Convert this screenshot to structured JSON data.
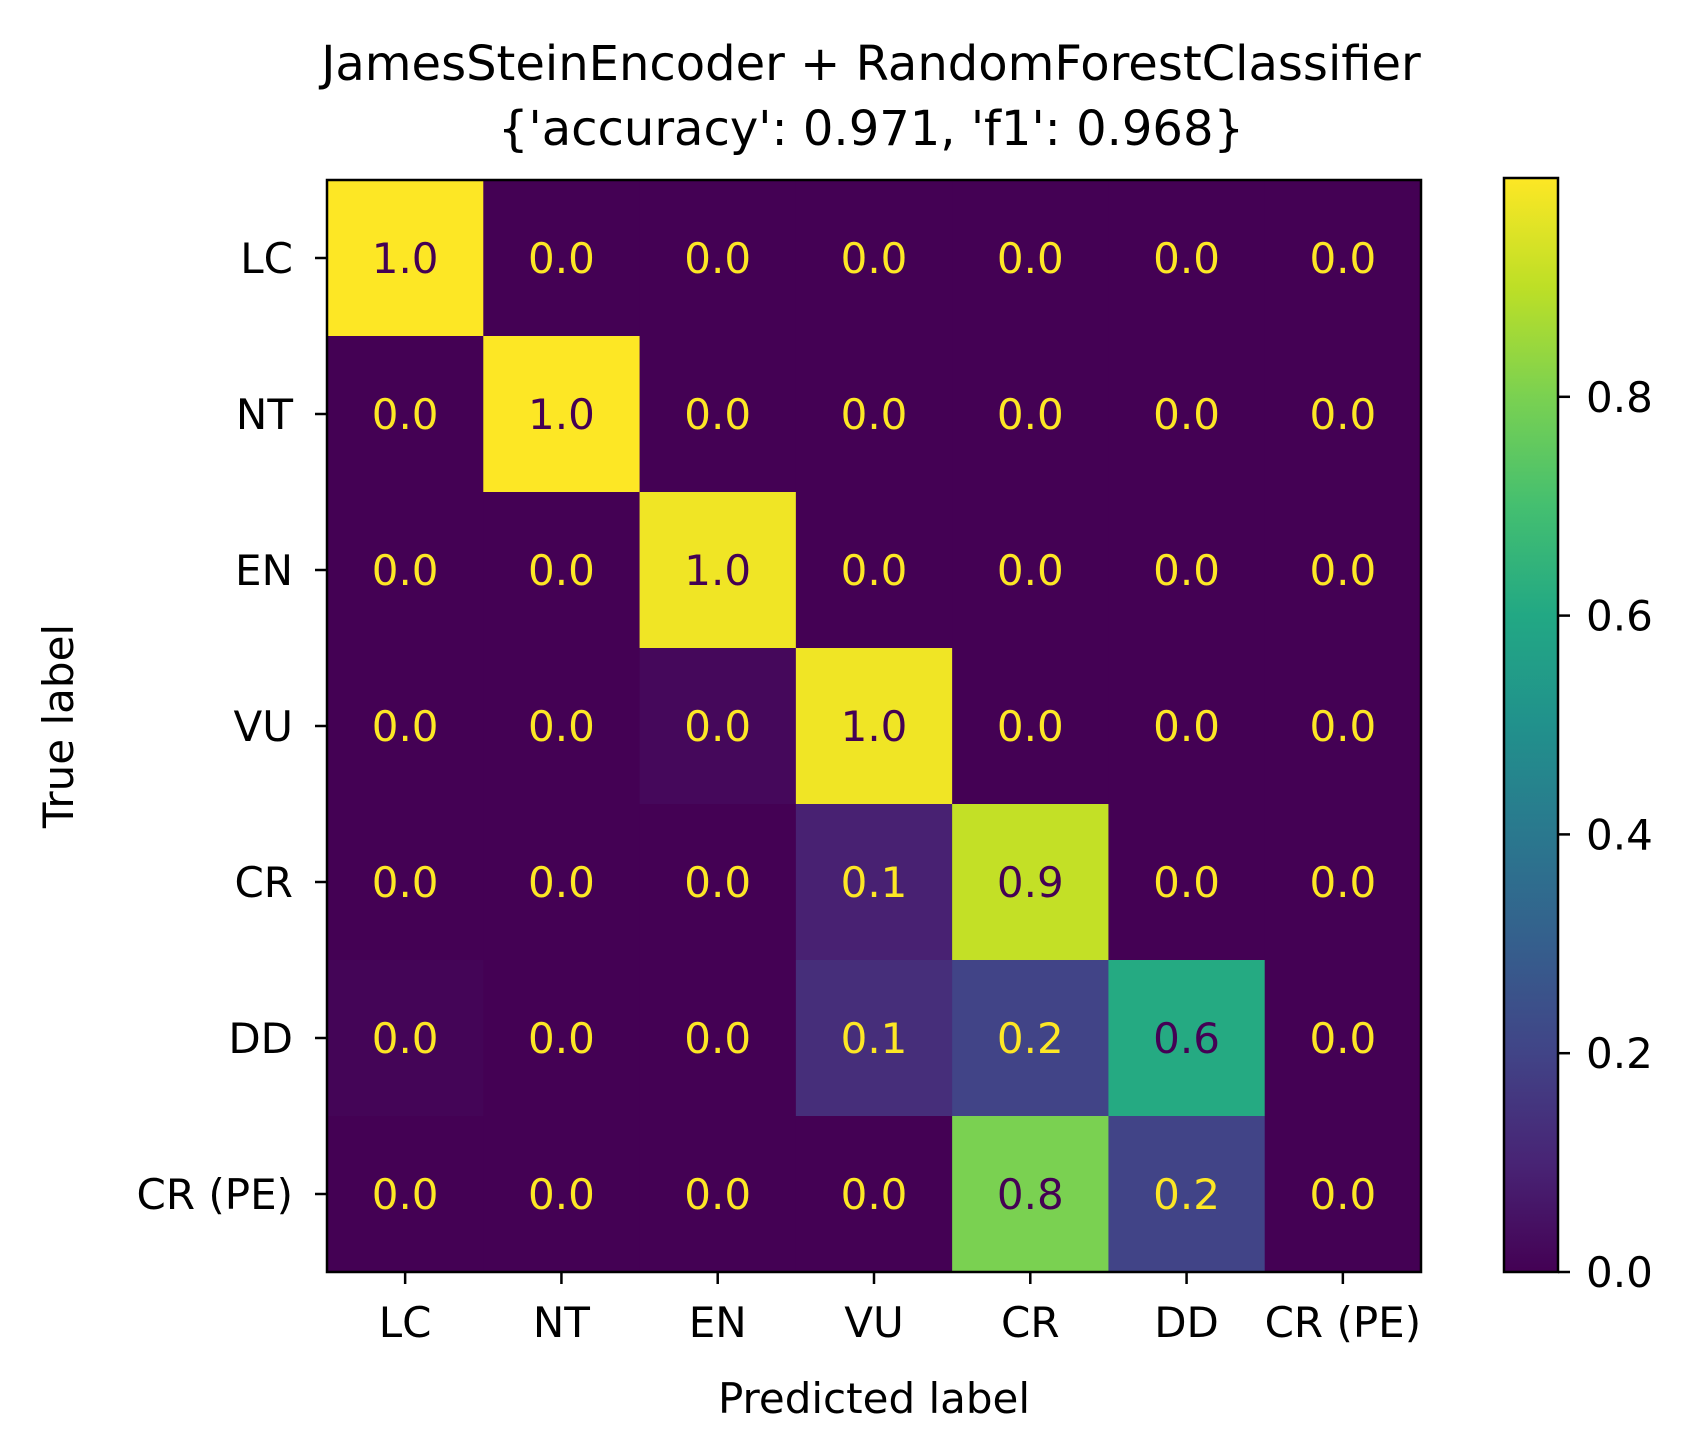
{
  "chart_data": {
    "type": "heatmap",
    "title": "JamesSteinEncoder + RandomForestClassifier",
    "subtitle": "{'accuracy': 0.971, 'f1': 0.968}",
    "xlabel": "Predicted label",
    "ylabel": "True label",
    "x_categories": [
      "LC",
      "NT",
      "EN",
      "VU",
      "CR",
      "DD",
      "CR (PE)"
    ],
    "y_categories": [
      "LC",
      "NT",
      "EN",
      "VU",
      "CR",
      "DD",
      "CR (PE)"
    ],
    "values": [
      [
        1.0,
        0.0,
        0.0,
        0.0,
        0.0,
        0.0,
        0.0
      ],
      [
        0.0,
        1.0,
        0.0,
        0.0,
        0.0,
        0.0,
        0.0
      ],
      [
        0.0,
        0.0,
        0.98,
        0.0,
        0.0,
        0.0,
        0.0
      ],
      [
        0.0,
        0.0,
        0.02,
        0.98,
        0.0,
        0.0,
        0.0
      ],
      [
        0.0,
        0.0,
        0.0,
        0.09,
        0.91,
        0.0,
        0.0
      ],
      [
        0.01,
        0.0,
        0.0,
        0.13,
        0.2,
        0.61,
        0.0
      ],
      [
        0.0,
        0.0,
        0.0,
        0.0,
        0.8,
        0.2,
        0.0
      ]
    ],
    "cell_labels": [
      [
        "1.0",
        "0.0",
        "0.0",
        "0.0",
        "0.0",
        "0.0",
        "0.0"
      ],
      [
        "0.0",
        "1.0",
        "0.0",
        "0.0",
        "0.0",
        "0.0",
        "0.0"
      ],
      [
        "0.0",
        "0.0",
        "1.0",
        "0.0",
        "0.0",
        "0.0",
        "0.0"
      ],
      [
        "0.0",
        "0.0",
        "0.0",
        "1.0",
        "0.0",
        "0.0",
        "0.0"
      ],
      [
        "0.0",
        "0.0",
        "0.0",
        "0.1",
        "0.9",
        "0.0",
        "0.0"
      ],
      [
        "0.0",
        "0.0",
        "0.0",
        "0.1",
        "0.2",
        "0.6",
        "0.0"
      ],
      [
        "0.0",
        "0.0",
        "0.0",
        "0.0",
        "0.8",
        "0.2",
        "0.0"
      ]
    ],
    "colormap": "viridis",
    "colorbar": {
      "range": [
        0.0,
        1.0
      ],
      "ticks": [
        0.0,
        0.2,
        0.4,
        0.6,
        0.8
      ],
      "tick_labels": [
        "0.0",
        "0.2",
        "0.4",
        "0.6",
        "0.8"
      ]
    },
    "text_colors": {
      "on_dark": "#fde725",
      "on_light": "#440154"
    }
  }
}
